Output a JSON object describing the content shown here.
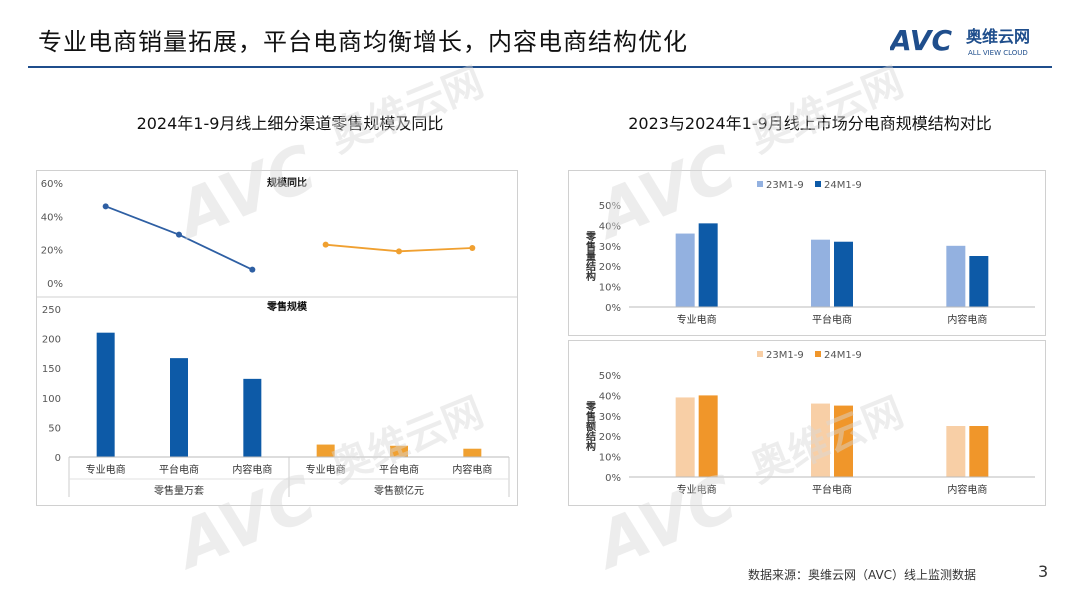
{
  "header": {
    "title": "专业电商销量拓展，平台电商均衡增长，内容电商结构优化",
    "logo_mark": "AVC",
    "logo_cn": "奥维云网",
    "logo_en": "ALL VIEW CLOUD"
  },
  "colors": {
    "rule": "#1f4e8c",
    "blue_dark": "#0d5aa7",
    "blue_line": "#2e5fa3",
    "blue_light": "#93b1e0",
    "orange": "#f0a030",
    "orange_light": "#f8cfa6",
    "orange_dark": "#f0962a"
  },
  "footer": {
    "source": "数据来源：奥维云网（AVC）线上监测数据",
    "page": "3"
  },
  "chart_data": [
    {
      "type": "bar",
      "title": "2024年1-9月线上细分渠道零售规模及同比",
      "panel_top": {
        "type": "line",
        "title": "规模同比",
        "ylim": [
          0,
          0.6
        ],
        "yticks": [
          "0%",
          "20%",
          "40%",
          "60%"
        ],
        "series": [
          {
            "values": [
              0.46,
              0.29,
              0.08
            ]
          },
          {
            "values": [
              0.23,
              0.19,
              0.21
            ]
          }
        ]
      },
      "panel_bottom": {
        "type": "bar",
        "title": "零售规模",
        "ylim": [
          0,
          250
        ],
        "yticks": [
          "0",
          "50",
          "100",
          "150",
          "200",
          "250"
        ],
        "series": [
          {
            "values": [
              210,
              167,
              132
            ]
          },
          {
            "values": [
              21,
              19,
              14
            ]
          }
        ]
      },
      "categories": [
        "专业电商",
        "平台电商",
        "内容电商",
        "专业电商",
        "平台电商",
        "内容电商"
      ],
      "groups": [
        {
          "label": "零售量万套",
          "span": [
            0,
            2
          ]
        },
        {
          "label": "零售额亿元",
          "span": [
            3,
            5
          ]
        }
      ]
    },
    {
      "type": "bar",
      "title": "2023与2024年1-9月线上市场分电商规模结构对比",
      "panels": [
        {
          "ylabel": "零售量结构",
          "ylim": [
            0,
            0.5
          ],
          "yticks": [
            "0%",
            "10%",
            "20%",
            "30%",
            "40%",
            "50%"
          ],
          "categories": [
            "专业电商",
            "平台电商",
            "内容电商"
          ],
          "series": [
            {
              "name": "23M1-9",
              "values": [
                0.36,
                0.33,
                0.3
              ]
            },
            {
              "name": "24M1-9",
              "values": [
                0.41,
                0.32,
                0.25
              ]
            }
          ]
        },
        {
          "ylabel": "零售额结构",
          "ylim": [
            0,
            0.5
          ],
          "yticks": [
            "0%",
            "10%",
            "20%",
            "30%",
            "40%",
            "50%"
          ],
          "categories": [
            "专业电商",
            "平台电商",
            "内容电商"
          ],
          "series": [
            {
              "name": "23M1-9",
              "values": [
                0.39,
                0.36,
                0.25
              ]
            },
            {
              "name": "24M1-9",
              "values": [
                0.4,
                0.35,
                0.25
              ]
            }
          ]
        }
      ]
    }
  ]
}
